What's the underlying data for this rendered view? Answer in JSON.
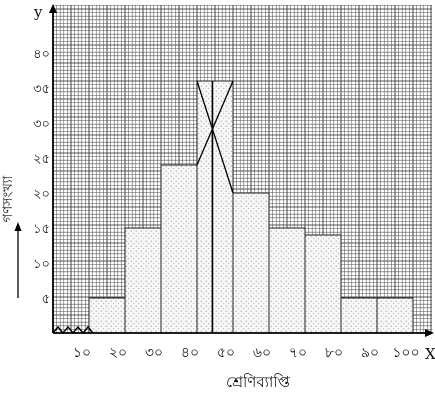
{
  "chart_data": {
    "type": "histogram",
    "bins": [
      "10-20",
      "20-30",
      "30-40",
      "40-50",
      "50-60",
      "60-70",
      "70-80",
      "80-90",
      "90-100"
    ],
    "bin_edges": [
      10,
      20,
      30,
      40,
      50,
      60,
      70,
      80,
      90,
      100
    ],
    "values": [
      5,
      15,
      24,
      36,
      20,
      15,
      14,
      5,
      5
    ],
    "x_ticks": [
      "১০",
      "২০",
      "৩০",
      "৪০",
      "৫০",
      "৬০",
      "৭০",
      "৮০",
      "৯০",
      "১০০"
    ],
    "y_ticks": [
      {
        "v": 5,
        "t": "৫"
      },
      {
        "v": 10,
        "t": "১০"
      },
      {
        "v": 15,
        "t": "১৫"
      },
      {
        "v": 20,
        "t": "২০"
      },
      {
        "v": 25,
        "t": "২৫"
      },
      {
        "v": 30,
        "t": "৩০"
      },
      {
        "v": 35,
        "t": "৩৫"
      },
      {
        "v": 40,
        "t": "৪০"
      }
    ],
    "xlabel": "শ্রেণিব্যাপ্তি",
    "ylabel": "গণসংখ্যা",
    "x_axis_letter": "X",
    "y_axis_letter": "y",
    "xlim": [
      0,
      105
    ],
    "ylim": [
      0,
      45
    ],
    "grid": true,
    "mode_construction": true,
    "bar_fill": "dotted",
    "colors": {
      "grid": "#444444",
      "axis": "#000000",
      "bar_fill": "#f7f7f7",
      "dots": "#8a8a8a"
    }
  }
}
